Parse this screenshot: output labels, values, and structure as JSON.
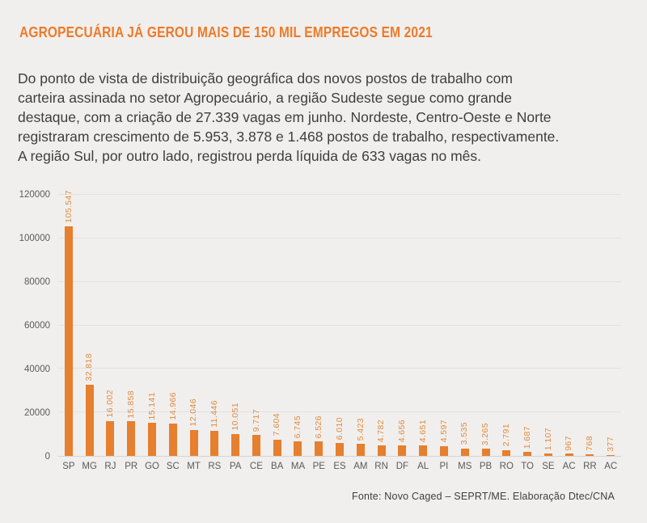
{
  "header": {
    "title": "AGROPECUÁRIA JÁ GEROU MAIS DE 150 MIL EMPREGOS EM 2021",
    "accent_color": "#ee7a28"
  },
  "intro": {
    "lines": [
      "Do ponto de vista de distribuição geográfica dos novos postos de trabalho com",
      "carteira assinada no setor Agropecuário, a região Sudeste segue como grande",
      "destaque, com a criação de 27.339 vagas em junho. Nordeste, Centro-Oeste e Norte",
      "registraram crescimento de 5.953, 3.878 e 1.468 postos de trabalho, respectivamente.",
      "A região Sul, por outro lado, registrou perda líquida de 633 vagas no mês."
    ]
  },
  "chart_data": {
    "type": "bar",
    "title": "",
    "xlabel": "",
    "ylabel": "",
    "categories": [
      "SP",
      "MG",
      "RJ",
      "PR",
      "GO",
      "SC",
      "MT",
      "RS",
      "PA",
      "CE",
      "BA",
      "MA",
      "PE",
      "ES",
      "AM",
      "RN",
      "DF",
      "AL",
      "PI",
      "MS",
      "PB",
      "RO",
      "TO",
      "SE",
      "AC",
      "RR",
      "AC"
    ],
    "values": [
      105547,
      32818,
      16002,
      15858,
      15141,
      14966,
      12046,
      11446,
      10051,
      9717,
      7604,
      6745,
      6526,
      6010,
      5423,
      4782,
      4656,
      4651,
      4597,
      3535,
      3265,
      2791,
      1687,
      1107,
      967,
      768,
      377
    ],
    "value_labels": [
      "105.547",
      "32.818",
      "16.002",
      "15.858",
      "15.141",
      "14.966",
      "12.046",
      "11.446",
      "10.051",
      "9.717",
      "7.604",
      "6.745",
      "6.526",
      "6.010",
      "5.423",
      "4.782",
      "4.656",
      "4.651",
      "4.597",
      "3.535",
      "3.265",
      "2.791",
      "1.687",
      "1.107",
      "967",
      "768",
      "377"
    ],
    "yticks": [
      0,
      20000,
      40000,
      60000,
      80000,
      100000,
      120000
    ],
    "ylim": [
      0,
      120000
    ],
    "grid": true,
    "legend": "none",
    "bar_color": "#e67f2e",
    "value_label_color": "#dd8c44"
  },
  "footer": {
    "source": "Fonte: Novo Caged – SEPRT/ME. Elaboração Dtec/CNA"
  }
}
